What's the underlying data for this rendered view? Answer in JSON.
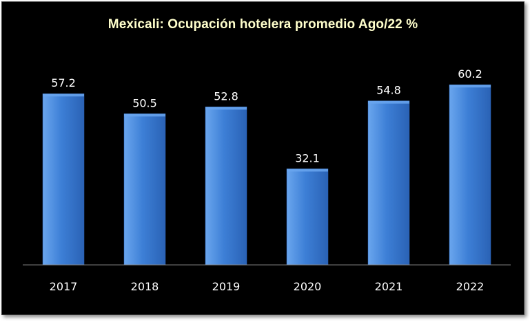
{
  "chart_data": {
    "type": "bar",
    "title": "Mexicali: Ocupación hotelera promedio Ago/22  %",
    "categories": [
      "2017",
      "2018",
      "2019",
      "2020",
      "2021",
      "2022"
    ],
    "values": [
      57.2,
      50.5,
      52.8,
      32.1,
      54.8,
      60.2
    ],
    "value_labels": [
      "57.2",
      "50.5",
      "52.8",
      "32.1",
      "54.8",
      "60.2"
    ],
    "xlabel": "",
    "ylabel": "",
    "ylim": [
      0,
      70
    ],
    "grid": false,
    "legend": "none",
    "y_axis_visible": false,
    "colors": {
      "background": "#000000",
      "bar_light": "#6aa6ee",
      "bar_mid": "#3d7fd6",
      "bar_dark": "#2a62b5",
      "title": "#ffffcc",
      "labels": "#ffffff",
      "axis": "#808080"
    }
  }
}
